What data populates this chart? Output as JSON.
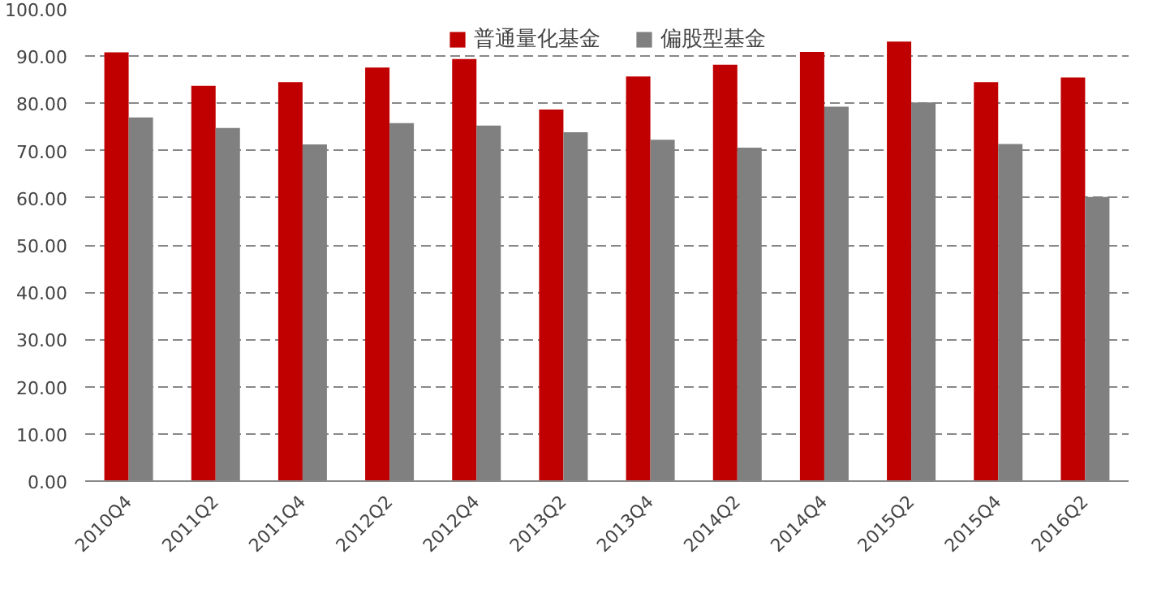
{
  "chart_data": {
    "type": "bar",
    "categories": [
      "2010Q4",
      "2011Q2",
      "2011Q4",
      "2012Q2",
      "2012Q4",
      "2013Q2",
      "2013Q4",
      "2014Q2",
      "2014Q4",
      "2015Q2",
      "2015Q4",
      "2016Q2"
    ],
    "series": [
      {
        "name": "普通量化基金",
        "color": "#c00000",
        "values": [
          90.8,
          83.7,
          84.5,
          87.6,
          89.4,
          78.7,
          85.7,
          88.2,
          90.9,
          93.1,
          84.5,
          85.5
        ]
      },
      {
        "name": "偏股型基金",
        "color": "#808080",
        "values": [
          77.0,
          74.8,
          71.3,
          75.8,
          75.3,
          73.9,
          72.3,
          70.6,
          79.3,
          80.2,
          71.4,
          60.2
        ]
      }
    ],
    "ylim": [
      0,
      100
    ],
    "yticks": [
      {
        "value": 0,
        "label": "0.00"
      },
      {
        "value": 10,
        "label": "10.00"
      },
      {
        "value": 20,
        "label": "20.00"
      },
      {
        "value": 30,
        "label": "30.00"
      },
      {
        "value": 40,
        "label": "40.00"
      },
      {
        "value": 50,
        "label": "50.00"
      },
      {
        "value": 60,
        "label": "60.00"
      },
      {
        "value": 70,
        "label": "70.00"
      },
      {
        "value": 80,
        "label": "80.00"
      },
      {
        "value": 90,
        "label": "90.00"
      },
      {
        "value": 100,
        "label": "100.00"
      }
    ],
    "grid": "y",
    "legend": "top"
  }
}
